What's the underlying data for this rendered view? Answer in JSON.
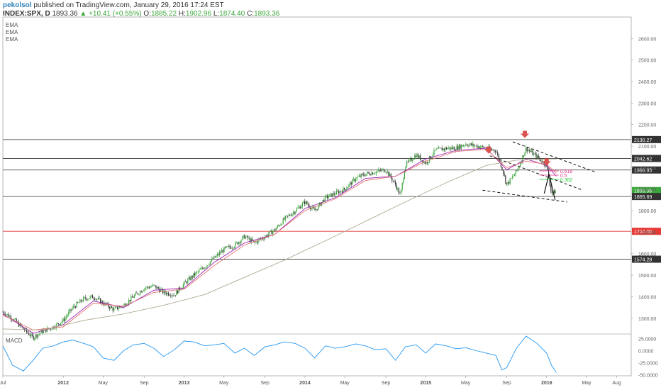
{
  "header": {
    "author": "pekolsol",
    "published": "published on TradingView.com, January 29, 2016 17:24 EST",
    "symbol": "INDEX:SPX, D",
    "last": "1893.36",
    "change": "+10.41 (+0.55%)",
    "open_label": "O:",
    "open": "1885.22",
    "high_label": "H:",
    "high": "1902.96",
    "low_label": "L:",
    "low": "1874.40",
    "close_label": "C:",
    "close": "1893.36"
  },
  "indicators": [
    "EMA",
    "EMA",
    "EMA"
  ],
  "macd_label": "MACD",
  "colors": {
    "up": "#3aa63a",
    "down": "#333333",
    "red_line": "#e53935",
    "ema_fast": "#9c27b0",
    "ema_mid": "#e57373",
    "ema_slow": "#b0a890",
    "macd": "#2196f3",
    "arrow": "#d9534f",
    "fib_618": "#e83e8c",
    "fib_05": "#e83e8c",
    "fib_382": "#2ecc40"
  },
  "chart_data": {
    "type": "line",
    "title": "",
    "price_axis": {
      "min": 1230,
      "max": 2700,
      "ticks": [
        1300,
        1400,
        1500,
        1600,
        1700,
        1800,
        1900,
        2000,
        2100,
        2200,
        2300,
        2400,
        2500,
        2600
      ],
      "tick_labels": [
        "1300.00",
        "1400.00",
        "1500.00",
        "1600.00",
        "1700.00",
        "1800.00",
        "1900.00",
        "2000.00",
        "2100.00",
        "2200.00",
        "2300.00",
        "2400.00",
        "2500.00",
        "2600.00"
      ]
    },
    "time_axis": {
      "start": 2011.5,
      "end": 2016.7,
      "ticks": [
        2011.5,
        2012.0,
        2012.33,
        2012.67,
        2013.0,
        2013.33,
        2013.67,
        2014.0,
        2014.33,
        2014.67,
        2015.0,
        2015.33,
        2015.67,
        2016.0,
        2016.33,
        2016.58
      ],
      "tick_labels": [
        "Jul",
        "2012",
        "May",
        "Sep",
        "2013",
        "May",
        "Sep",
        "2014",
        "May",
        "Sep",
        "2015",
        "May",
        "Sep",
        "2016",
        "May",
        "Aug"
      ],
      "bold_labels": [
        "2012",
        "2013",
        "2014",
        "2015",
        "2016"
      ]
    },
    "series": [
      {
        "name": "INDEX:SPX",
        "x": [
          2011.5,
          2011.58,
          2011.67,
          2011.75,
          2011.83,
          2011.92,
          2012.0,
          2012.08,
          2012.17,
          2012.25,
          2012.33,
          2012.42,
          2012.5,
          2012.58,
          2012.67,
          2012.75,
          2012.83,
          2012.92,
          2013.0,
          2013.08,
          2013.17,
          2013.25,
          2013.33,
          2013.42,
          2013.5,
          2013.58,
          2013.67,
          2013.75,
          2013.83,
          2013.92,
          2014.0,
          2014.08,
          2014.17,
          2014.25,
          2014.33,
          2014.42,
          2014.5,
          2014.58,
          2014.67,
          2014.75,
          2014.79,
          2014.83,
          2014.92,
          2015.0,
          2015.08,
          2015.17,
          2015.25,
          2015.33,
          2015.42,
          2015.5,
          2015.58,
          2015.63,
          2015.67,
          2015.75,
          2015.83,
          2015.92,
          2016.0,
          2016.04,
          2016.08
        ],
        "y": [
          1330,
          1300,
          1250,
          1210,
          1240,
          1260,
          1290,
          1350,
          1390,
          1400,
          1370,
          1340,
          1360,
          1400,
          1440,
          1450,
          1420,
          1410,
          1460,
          1500,
          1540,
          1580,
          1620,
          1640,
          1680,
          1650,
          1680,
          1710,
          1760,
          1800,
          1840,
          1800,
          1860,
          1880,
          1900,
          1950,
          1970,
          1980,
          1990,
          1920,
          1870,
          2010,
          2060,
          2020,
          2080,
          2090,
          2090,
          2110,
          2100,
          2090,
          2080,
          2000,
          1920,
          1980,
          2090,
          2050,
          2010,
          1880,
          1893
        ]
      }
    ],
    "ema": [
      {
        "name": "",
        "x": [
          2011.5,
          2011.75,
          2012.0,
          2012.25,
          2012.5,
          2012.75,
          2013.0,
          2013.25,
          2013.5,
          2013.75,
          2014.0,
          2014.25,
          2014.5,
          2014.75,
          2015.0,
          2015.25,
          2015.5,
          2015.67,
          2015.83,
          2016.0,
          2016.08
        ],
        "y": [
          1320,
          1230,
          1270,
          1380,
          1350,
          1430,
          1440,
          1560,
          1650,
          1690,
          1810,
          1860,
          1950,
          1960,
          2040,
          2080,
          2090,
          1990,
          2040,
          2010,
          1960
        ]
      },
      {
        "name": "",
        "x": [
          2011.5,
          2011.75,
          2012.0,
          2012.25,
          2012.5,
          2012.75,
          2013.0,
          2013.25,
          2013.5,
          2013.75,
          2014.0,
          2014.25,
          2014.5,
          2014.75,
          2015.0,
          2015.25,
          2015.5,
          2015.67,
          2015.83,
          2016.0,
          2016.08
        ],
        "y": [
          1315,
          1245,
          1260,
          1370,
          1355,
          1420,
          1435,
          1545,
          1640,
          1690,
          1800,
          1855,
          1940,
          1960,
          2030,
          2075,
          2085,
          2000,
          2030,
          2015,
          1975
        ]
      },
      {
        "name": "",
        "x": [
          2011.5,
          2011.83,
          2012.17,
          2012.5,
          2012.83,
          2013.17,
          2013.5,
          2013.83,
          2014.17,
          2014.5,
          2014.83,
          2015.17,
          2015.5,
          2015.75,
          2016.0,
          2016.08
        ],
        "y": [
          1250,
          1245,
          1290,
          1320,
          1360,
          1410,
          1490,
          1570,
          1660,
          1750,
          1840,
          1930,
          2010,
          2035,
          2040,
          2040
        ]
      }
    ],
    "levels": [
      {
        "price": 2130.27,
        "label": "2130.27",
        "color": "#333333"
      },
      {
        "price": 2042.62,
        "label": "2042.62",
        "color": "#333333"
      },
      {
        "price": 1988.95,
        "label": "1988.95",
        "color": "#333333"
      },
      {
        "price": 1893.36,
        "label": "1893.36",
        "color": "#3aa63a"
      },
      {
        "price": 1865.69,
        "label": "1865.69",
        "color": "#333333"
      },
      {
        "price": 1704.0,
        "label": "1704.00",
        "color": "#e53935"
      },
      {
        "price": 1574.28,
        "label": "1574.28",
        "color": "#333333"
      }
    ],
    "fib_labels": [
      "0.618",
      "0.5",
      "0.382"
    ],
    "macd": {
      "axis_ticks": [
        25.0,
        0.0,
        -25.0,
        -50.0
      ],
      "axis_labels": [
        "25.0000",
        "0.0000",
        "-25.0000",
        "-50.0000"
      ],
      "range": [
        -52,
        33
      ],
      "x": [
        2011.5,
        2011.58,
        2011.67,
        2011.75,
        2011.83,
        2011.92,
        2012.0,
        2012.08,
        2012.17,
        2012.25,
        2012.33,
        2012.42,
        2012.5,
        2012.58,
        2012.67,
        2012.75,
        2012.83,
        2012.92,
        2013.0,
        2013.08,
        2013.17,
        2013.25,
        2013.33,
        2013.42,
        2013.5,
        2013.58,
        2013.67,
        2013.75,
        2013.83,
        2013.92,
        2014.0,
        2014.08,
        2014.17,
        2014.25,
        2014.33,
        2014.42,
        2014.5,
        2014.58,
        2014.67,
        2014.75,
        2014.83,
        2014.92,
        2015.0,
        2015.08,
        2015.17,
        2015.25,
        2015.33,
        2015.42,
        2015.5,
        2015.58,
        2015.63,
        2015.67,
        2015.75,
        2015.83,
        2015.92,
        2016.0,
        2016.04,
        2016.08
      ],
      "y": [
        10,
        -30,
        -42,
        -20,
        5,
        10,
        18,
        22,
        15,
        8,
        -15,
        -20,
        0,
        12,
        15,
        5,
        -12,
        2,
        20,
        18,
        10,
        12,
        15,
        -5,
        5,
        -10,
        8,
        12,
        18,
        15,
        5,
        -15,
        10,
        5,
        8,
        14,
        10,
        2,
        4,
        -20,
        8,
        12,
        -5,
        14,
        10,
        4,
        6,
        0,
        -5,
        -10,
        -40,
        -35,
        5,
        30,
        15,
        -5,
        -30,
        -45
      ]
    }
  }
}
